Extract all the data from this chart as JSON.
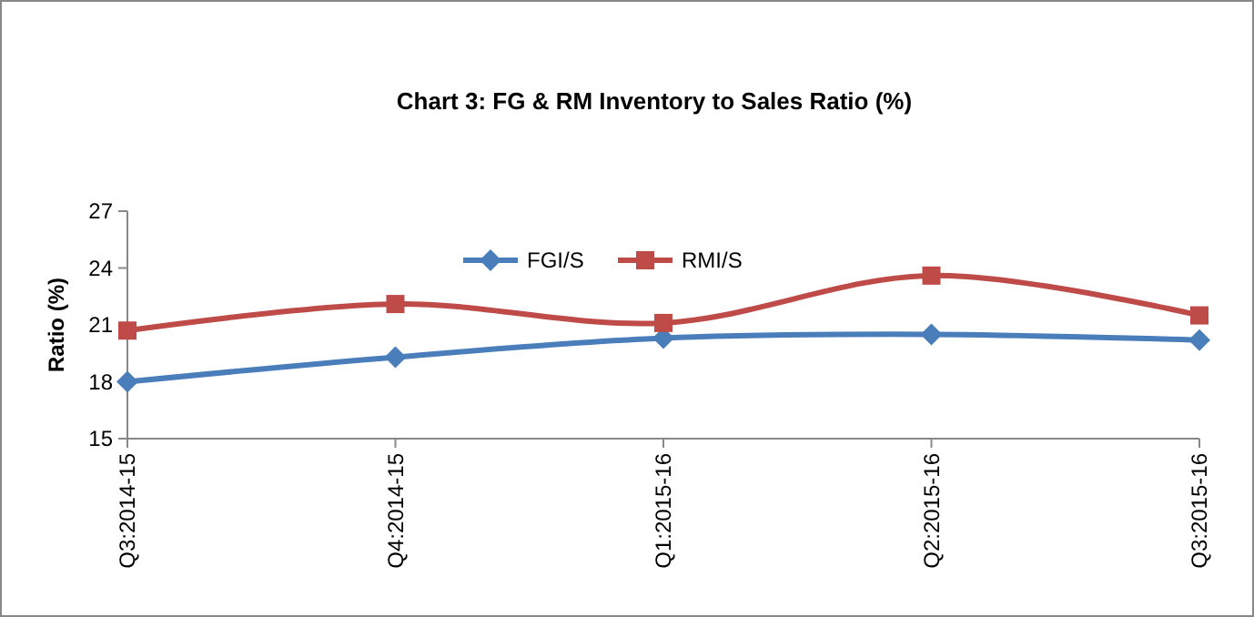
{
  "chart_data": {
    "type": "line",
    "title": "Chart 3: FG & RM Inventory to Sales Ratio (%)",
    "ylabel": "Ratio (%)",
    "categories": [
      "Q3:2014-15",
      "Q4:2014-15",
      "Q1:2015-16",
      "Q2:2015-16",
      "Q3:2015-16"
    ],
    "series": [
      {
        "name": "FGI/S",
        "color": "#4a7ebb",
        "values": [
          18.0,
          19.3,
          20.3,
          20.5,
          20.2
        ],
        "marker": "diamond"
      },
      {
        "name": "RMI/S",
        "color": "#be4b48",
        "values": [
          20.7,
          22.1,
          21.1,
          23.6,
          21.5
        ],
        "marker": "square"
      }
    ],
    "ylim": [
      15,
      27
    ],
    "yticks": [
      15,
      18,
      21,
      24,
      27
    ],
    "grid": false,
    "legend": "top",
    "line_style": "solid"
  }
}
